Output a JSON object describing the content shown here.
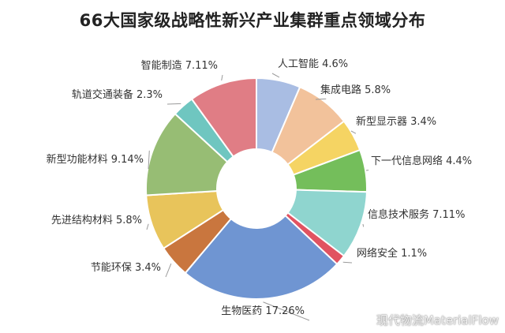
{
  "chart_data": {
    "type": "pie",
    "donut": true,
    "title": "66大国家级战略性新兴产业集群重点领域分布",
    "unit": "%",
    "slices": [
      {
        "label": "人工智能",
        "value": 4.6,
        "display": "4.6%",
        "color": "#a9bde3"
      },
      {
        "label": "集成电路",
        "value": 5.8,
        "display": "5.8%",
        "color": "#f2c29b"
      },
      {
        "label": "新型显示器",
        "value": 3.4,
        "display": "3.4%",
        "color": "#f5d463"
      },
      {
        "label": "下一代信息网络",
        "value": 4.4,
        "display": "4.4%",
        "color": "#74be5b"
      },
      {
        "label": "信息技术服务",
        "value": 7.11,
        "display": "7.11%",
        "color": "#8fd5cf"
      },
      {
        "label": "网络安全",
        "value": 1.1,
        "display": "1.1%",
        "color": "#e15361"
      },
      {
        "label": "生物医药",
        "value": 17.26,
        "display": "17.26%",
        "color": "#6f95d2"
      },
      {
        "label": "节能环保",
        "value": 3.4,
        "display": "3.4%",
        "color": "#c9763e"
      },
      {
        "label": "先进结构材料",
        "value": 5.8,
        "display": "5.8%",
        "color": "#e8c45b"
      },
      {
        "label": "新型功能材料",
        "value": 9.14,
        "display": "9.14%",
        "color": "#97bd74"
      },
      {
        "label": "轨道交通装备",
        "value": 2.3,
        "display": "2.3%",
        "color": "#6fc6c0"
      },
      {
        "label": "智能制造",
        "value": 7.11,
        "display": "7.11%",
        "color": "#e07d85"
      }
    ]
  },
  "watermark": "现代物流MaterialFlow"
}
